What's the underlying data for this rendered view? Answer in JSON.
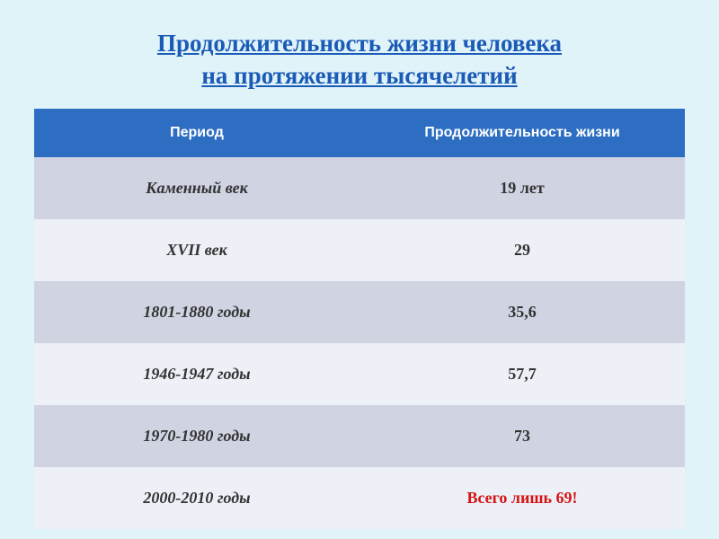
{
  "title_line1": "Продолжительность жизни человека ",
  "title_line2": "на протяжении тысячелетий",
  "table": {
    "type": "table",
    "header_bg": "#2d6ec2",
    "header_text_color": "#ffffff",
    "row_colors": [
      "#cfd3e2",
      "#eef0f7"
    ],
    "page_bg": "#e0f3f8",
    "title_color": "#1b5bb8",
    "highlight_color": "#d41414",
    "columns": [
      "Период",
      "Продолжительность жизни"
    ],
    "rows": [
      {
        "period": "Каменный век",
        "value": "19 лет",
        "highlight": false
      },
      {
        "period": "XVII век",
        "value": "29",
        "highlight": false
      },
      {
        "period": "1801-1880 годы",
        "value": "35,6",
        "highlight": false
      },
      {
        "period": "1946-1947 годы",
        "value": "57,7",
        "highlight": false
      },
      {
        "period": "1970-1980 годы",
        "value": "73",
        "highlight": false
      },
      {
        "period": "2000-2010 годы",
        "value": "Всего лишь 69!",
        "highlight": true
      }
    ]
  }
}
